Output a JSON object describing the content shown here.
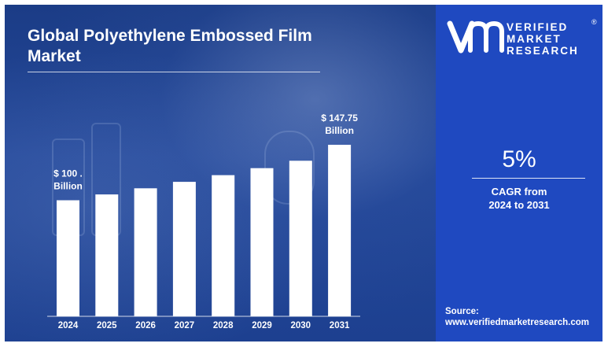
{
  "header": {
    "title_line1": "Global Polyethylene Embossed Film",
    "title_line2": "Market"
  },
  "brand": {
    "line1": "VERIFIED",
    "line2": "MARKET",
    "line3": "RESEARCH",
    "registered": "®"
  },
  "cagr": {
    "value": "5%",
    "label_line1": "CAGR from",
    "label_line2": "2024 to 2031"
  },
  "source": {
    "label": "Source:",
    "url": "www.verifiedmarketresearch.com"
  },
  "colors": {
    "chart_panel": "#1c3f8f",
    "side_panel": "#1f49c0",
    "bars": "#ffffff"
  },
  "chart_data": {
    "type": "bar",
    "title": "Global Polyethylene Embossed Film Market",
    "categories": [
      "2024",
      "2025",
      "2026",
      "2027",
      "2028",
      "2029",
      "2030",
      "2031"
    ],
    "values": [
      100,
      105,
      110.3,
      115.8,
      121.6,
      127.6,
      134.0,
      147.75
    ],
    "xlabel": "",
    "ylabel": "",
    "grid": false,
    "annotations": [
      {
        "category": "2024",
        "line1": "$ 100 .",
        "line2": "Billion"
      },
      {
        "category": "2031",
        "line1": "$ 147.75",
        "line2": "Billion"
      }
    ]
  }
}
